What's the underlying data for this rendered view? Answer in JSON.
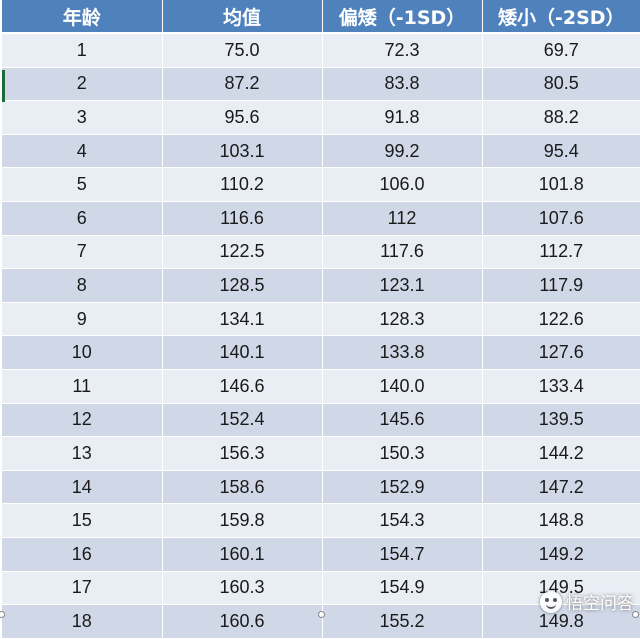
{
  "table": {
    "headers": [
      "年龄",
      "均值",
      "偏矮（-1SD）",
      "矮小（-2SD）"
    ],
    "rows": [
      [
        "1",
        "75.0",
        "72.3",
        "69.7"
      ],
      [
        "2",
        "87.2",
        "83.8",
        "80.5"
      ],
      [
        "3",
        "95.6",
        "91.8",
        "88.2"
      ],
      [
        "4",
        "103.1",
        "99.2",
        "95.4"
      ],
      [
        "5",
        "110.2",
        "106.0",
        "101.8"
      ],
      [
        "6",
        "116.6",
        "112",
        "107.6"
      ],
      [
        "7",
        "122.5",
        "117.6",
        "112.7"
      ],
      [
        "8",
        "128.5",
        "123.1",
        "117.9"
      ],
      [
        "9",
        "134.1",
        "128.3",
        "122.6"
      ],
      [
        "10",
        "140.1",
        "133.8",
        "127.6"
      ],
      [
        "11",
        "146.6",
        "140.0",
        "133.4"
      ],
      [
        "12",
        "152.4",
        "145.6",
        "139.5"
      ],
      [
        "13",
        "156.3",
        "150.3",
        "144.2"
      ],
      [
        "14",
        "158.6",
        "152.9",
        "147.2"
      ],
      [
        "15",
        "159.8",
        "154.3",
        "148.8"
      ],
      [
        "16",
        "160.1",
        "154.7",
        "149.2"
      ],
      [
        "17",
        "160.3",
        "154.9",
        "149.5"
      ],
      [
        "18",
        "160.6",
        "155.2",
        "149.8"
      ]
    ]
  },
  "colors": {
    "header_bg": "#4f81bd",
    "row_light": "#e9edf4",
    "row_dark": "#d0d8e8"
  },
  "watermark": {
    "text": "悟空问答",
    "icon": "wukong-face-icon"
  }
}
